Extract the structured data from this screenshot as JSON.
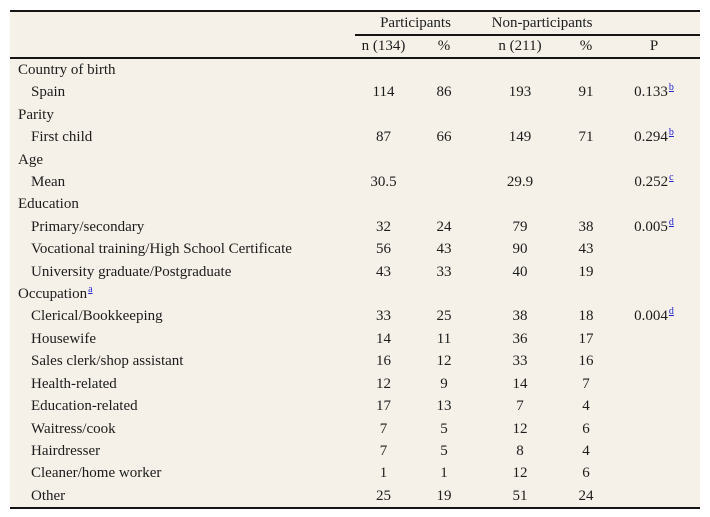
{
  "colors": {
    "page-bg": "#ffffff",
    "table-bg": "#f5f1e8",
    "text": "#1c1c1c",
    "rule": "#151515",
    "link": "#2222cc"
  },
  "table": {
    "group_headers": {
      "participants": "Participants",
      "non_participants": "Non-participants"
    },
    "column_headers": {
      "n_participants": "n (134)",
      "pct_participants": "%",
      "n_nonparticipants": "n (211)",
      "pct_nonparticipants": "%",
      "p": "P"
    },
    "rows": [
      {
        "type": "section",
        "label": "Country of birth"
      },
      {
        "type": "item",
        "label": "Spain",
        "n1": "114",
        "pct1": "86",
        "n2": "193",
        "pct2": "91",
        "p": "0.133",
        "p_sup": "b"
      },
      {
        "type": "section",
        "label": "Parity"
      },
      {
        "type": "item",
        "label": "First child",
        "n1": "87",
        "pct1": "66",
        "n2": "149",
        "pct2": "71",
        "p": "0.294",
        "p_sup": "b"
      },
      {
        "type": "section",
        "label": "Age"
      },
      {
        "type": "item",
        "label": "Mean",
        "n1": "30.5",
        "pct1": "",
        "n2": "29.9",
        "pct2": "",
        "p": "0.252",
        "p_sup": "c"
      },
      {
        "type": "section",
        "label": "Education"
      },
      {
        "type": "item",
        "label": "Primary/secondary",
        "n1": "32",
        "pct1": "24",
        "n2": "79",
        "pct2": "38",
        "p": "0.005",
        "p_sup": "d"
      },
      {
        "type": "item",
        "label": "Vocational training/High School Certificate",
        "n1": "56",
        "pct1": "43",
        "n2": "90",
        "pct2": "43"
      },
      {
        "type": "item",
        "label": "University graduate/Postgraduate",
        "n1": "43",
        "pct1": "33",
        "n2": "40",
        "pct2": "19"
      },
      {
        "type": "section",
        "label": "Occupation",
        "label_sup": "a"
      },
      {
        "type": "item",
        "label": "Clerical/Bookkeeping",
        "n1": "33",
        "pct1": "25",
        "n2": "38",
        "pct2": "18",
        "p": "0.004",
        "p_sup": "d"
      },
      {
        "type": "item",
        "label": "Housewife",
        "n1": "14",
        "pct1": "11",
        "n2": "36",
        "pct2": "17"
      },
      {
        "type": "item",
        "label": "Sales clerk/shop assistant",
        "n1": "16",
        "pct1": "12",
        "n2": "33",
        "pct2": "16"
      },
      {
        "type": "item",
        "label": "Health-related",
        "n1": "12",
        "pct1": "9",
        "n2": "14",
        "pct2": "7"
      },
      {
        "type": "item",
        "label": "Education-related",
        "n1": "17",
        "pct1": "13",
        "n2": "7",
        "pct2": "4"
      },
      {
        "type": "item",
        "label": "Waitress/cook",
        "n1": "7",
        "pct1": "5",
        "n2": "12",
        "pct2": "6"
      },
      {
        "type": "item",
        "label": "Hairdresser",
        "n1": "7",
        "pct1": "5",
        "n2": "8",
        "pct2": "4"
      },
      {
        "type": "item",
        "label": "Cleaner/home worker",
        "n1": "1",
        "pct1": "1",
        "n2": "12",
        "pct2": "6"
      },
      {
        "type": "item",
        "label": "Other",
        "n1": "25",
        "pct1": "19",
        "n2": "51",
        "pct2": "24"
      }
    ]
  }
}
